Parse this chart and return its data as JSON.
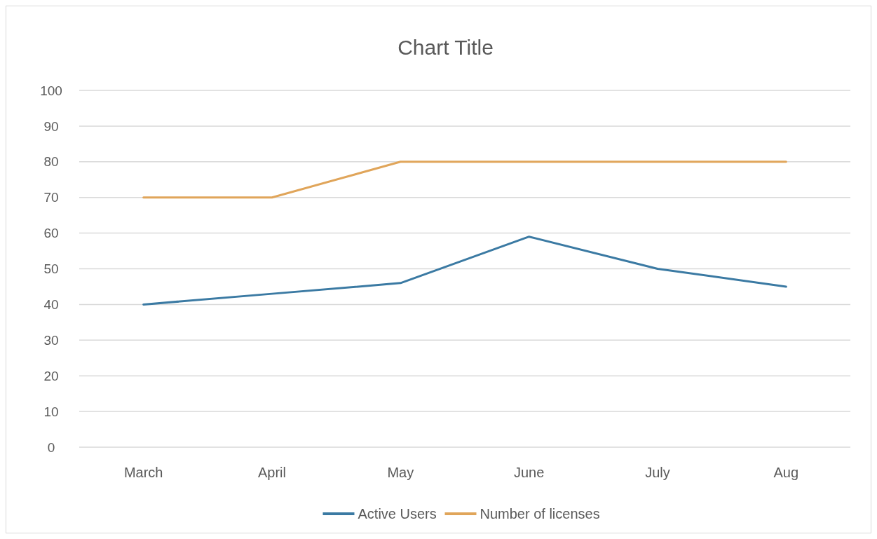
{
  "chart_data": {
    "type": "line",
    "title": "Chart Title",
    "categories": [
      "March",
      "April",
      "May",
      "June",
      "July",
      "Aug"
    ],
    "series": [
      {
        "name": "Active Users",
        "color": "#3b7aa3",
        "values": [
          40,
          43,
          46,
          59,
          50,
          45
        ]
      },
      {
        "name": "Number of licenses",
        "color": "#e0a55a",
        "values": [
          70,
          70,
          80,
          80,
          80,
          80
        ]
      }
    ],
    "ylim": [
      0,
      100
    ],
    "yticks": [
      0,
      10,
      20,
      30,
      40,
      50,
      60,
      70,
      80,
      90,
      100
    ],
    "grid": "y",
    "legend": "bottom",
    "marker": "none",
    "line_style": "solid"
  }
}
